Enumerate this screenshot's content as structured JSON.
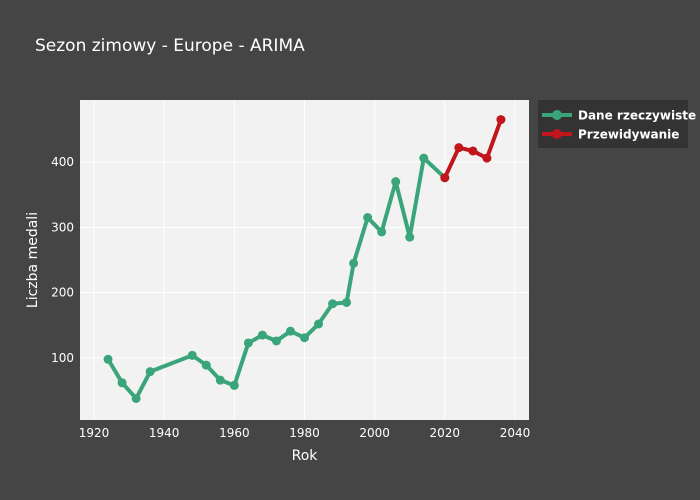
{
  "chart_data": {
    "type": "line",
    "title": "Sezon zimowy - Europe - ARIMA",
    "xlabel": "Rok",
    "ylabel": "Liczba medali",
    "xlim": [
      1916,
      2044
    ],
    "ylim": [
      5,
      495
    ],
    "xticks": [
      1920,
      1940,
      1960,
      1980,
      2000,
      2020,
      2040
    ],
    "yticks": [
      100,
      200,
      300,
      400
    ],
    "grid": true,
    "legend_position": "top-right-outside",
    "series": [
      {
        "name": "Dane rzeczywiste",
        "color": "#3aa57a",
        "x": [
          1924,
          1928,
          1932,
          1936,
          1948,
          1952,
          1956,
          1960,
          1964,
          1968,
          1972,
          1976,
          1980,
          1984,
          1988,
          1992,
          1994,
          1998,
          2002,
          2006,
          2010,
          2014,
          2020
        ],
        "y": [
          98,
          62,
          38,
          79,
          104,
          89,
          66,
          58,
          123,
          135,
          126,
          141,
          131,
          152,
          183,
          185,
          245,
          315,
          293,
          370,
          285,
          406,
          376
        ]
      },
      {
        "name": "Przewidywanie",
        "color": "#c0161c",
        "x": [
          2020,
          2024,
          2028,
          2032,
          2036
        ],
        "y": [
          376,
          422,
          417,
          406,
          465
        ]
      }
    ]
  }
}
